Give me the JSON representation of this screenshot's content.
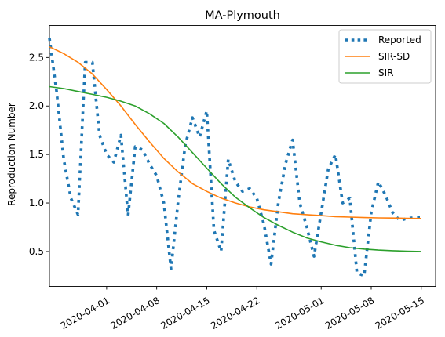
{
  "chart_data": {
    "type": "line",
    "title": "MA-Plymouth",
    "xlabel": "",
    "ylabel": "Reproduction Number",
    "x_axis": "date",
    "xlim": [
      "2020-03-24",
      "2020-05-17"
    ],
    "ylim": [
      0.14,
      2.83
    ],
    "x_ticks": [
      "2020-04-01",
      "2020-04-08",
      "2020-04-15",
      "2020-04-22",
      "2020-05-01",
      "2020-05-08",
      "2020-05-15"
    ],
    "y_ticks": [
      0.5,
      1.0,
      1.5,
      2.0,
      2.5
    ],
    "y_tick_labels": [
      "0.5",
      "1.0",
      "1.5",
      "2.0",
      "2.5"
    ],
    "grid": false,
    "legend_position": "top-right",
    "series": [
      {
        "name": "Reported",
        "color": "#1f77b4",
        "style": "dotted",
        "x": [
          "2020-03-24",
          "2020-03-25",
          "2020-03-26",
          "2020-03-27",
          "2020-03-28",
          "2020-03-29",
          "2020-03-30",
          "2020-03-31",
          "2020-04-01",
          "2020-04-02",
          "2020-04-03",
          "2020-04-04",
          "2020-04-05",
          "2020-04-06",
          "2020-04-07",
          "2020-04-08",
          "2020-04-09",
          "2020-04-10",
          "2020-04-11",
          "2020-04-12",
          "2020-04-13",
          "2020-04-14",
          "2020-04-15",
          "2020-04-16",
          "2020-04-17",
          "2020-04-18",
          "2020-04-19",
          "2020-04-20",
          "2020-04-21",
          "2020-04-22",
          "2020-04-23",
          "2020-04-24",
          "2020-04-25",
          "2020-04-26",
          "2020-04-27",
          "2020-04-28",
          "2020-04-29",
          "2020-04-30",
          "2020-05-01",
          "2020-05-02",
          "2020-05-03",
          "2020-05-04",
          "2020-05-05",
          "2020-05-06",
          "2020-05-07",
          "2020-05-08",
          "2020-05-09",
          "2020-05-10",
          "2020-05-11",
          "2020-05-12",
          "2020-05-13",
          "2020-05-14",
          "2020-05-15"
        ],
        "values": [
          2.7,
          2.15,
          1.45,
          1.05,
          0.88,
          2.45,
          2.45,
          1.7,
          1.5,
          1.42,
          1.7,
          0.87,
          1.58,
          1.55,
          1.4,
          1.28,
          1.0,
          0.32,
          1.02,
          1.6,
          1.88,
          1.68,
          1.95,
          0.72,
          0.5,
          1.45,
          1.22,
          1.12,
          1.15,
          1.05,
          0.78,
          0.37,
          1.0,
          1.4,
          1.65,
          1.0,
          0.75,
          0.45,
          0.9,
          1.35,
          1.5,
          1.0,
          1.05,
          0.28,
          0.25,
          0.9,
          1.22,
          1.08,
          0.9,
          0.82,
          0.84,
          0.85,
          0.85
        ]
      },
      {
        "name": "SIR-SD",
        "color": "#ff7f0e",
        "style": "solid",
        "x": [
          "2020-03-24",
          "2020-03-26",
          "2020-03-28",
          "2020-03-30",
          "2020-04-01",
          "2020-04-03",
          "2020-04-05",
          "2020-04-07",
          "2020-04-09",
          "2020-04-11",
          "2020-04-13",
          "2020-04-15",
          "2020-04-17",
          "2020-04-19",
          "2020-04-21",
          "2020-04-23",
          "2020-04-25",
          "2020-04-27",
          "2020-04-29",
          "2020-05-01",
          "2020-05-03",
          "2020-05-05",
          "2020-05-07",
          "2020-05-09",
          "2020-05-11",
          "2020-05-13",
          "2020-05-15"
        ],
        "values": [
          2.61,
          2.54,
          2.45,
          2.33,
          2.17,
          2.0,
          1.81,
          1.63,
          1.46,
          1.32,
          1.2,
          1.12,
          1.05,
          1.0,
          0.96,
          0.93,
          0.91,
          0.89,
          0.88,
          0.87,
          0.86,
          0.855,
          0.85,
          0.847,
          0.845,
          0.843,
          0.84
        ]
      },
      {
        "name": "SIR",
        "color": "#2ca02c",
        "style": "solid",
        "x": [
          "2020-03-24",
          "2020-03-26",
          "2020-03-28",
          "2020-03-30",
          "2020-04-01",
          "2020-04-03",
          "2020-04-05",
          "2020-04-07",
          "2020-04-09",
          "2020-04-11",
          "2020-04-13",
          "2020-04-15",
          "2020-04-17",
          "2020-04-19",
          "2020-04-21",
          "2020-04-23",
          "2020-04-25",
          "2020-04-27",
          "2020-04-29",
          "2020-05-01",
          "2020-05-03",
          "2020-05-05",
          "2020-05-07",
          "2020-05-09",
          "2020-05-11",
          "2020-05-13",
          "2020-05-15"
        ],
        "values": [
          2.2,
          2.18,
          2.15,
          2.12,
          2.09,
          2.05,
          2.0,
          1.92,
          1.82,
          1.68,
          1.52,
          1.36,
          1.2,
          1.06,
          0.95,
          0.85,
          0.77,
          0.7,
          0.64,
          0.6,
          0.565,
          0.54,
          0.525,
          0.515,
          0.508,
          0.503,
          0.5
        ]
      }
    ]
  }
}
